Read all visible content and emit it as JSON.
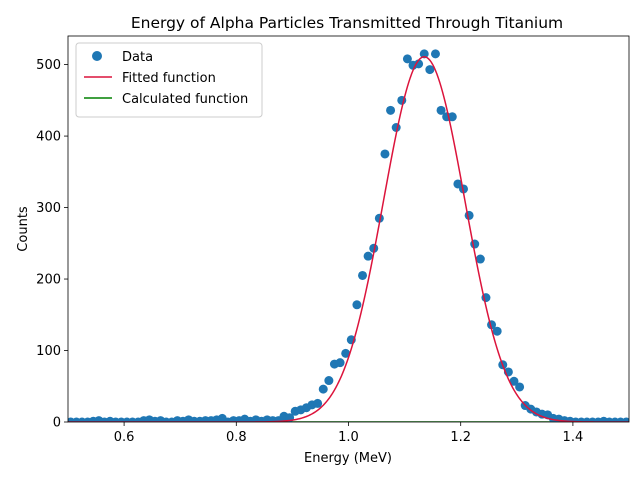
{
  "chart_data": {
    "type": "scatter",
    "title": "Energy of Alpha Particles Transmitted Through Titanium",
    "xlabel": "Energy (MeV)",
    "ylabel": "Counts",
    "xlim": [
      0.5,
      1.5
    ],
    "ylim": [
      0,
      540
    ],
    "x_ticks": [
      0.6,
      0.8,
      1.0,
      1.2,
      1.4
    ],
    "x_tick_labels": [
      "0.6",
      "0.8",
      "1.0",
      "1.2",
      "1.4"
    ],
    "y_ticks": [
      0,
      100,
      200,
      300,
      400,
      500
    ],
    "y_tick_labels": [
      "0",
      "100",
      "200",
      "300",
      "400",
      "500"
    ],
    "grid": false,
    "legend_position": "top-left",
    "series": [
      {
        "name": "Data",
        "kind": "scatter",
        "color": "#1f77b4",
        "x": [
          0.505,
          0.515,
          0.525,
          0.535,
          0.545,
          0.555,
          0.565,
          0.575,
          0.585,
          0.595,
          0.605,
          0.615,
          0.625,
          0.635,
          0.645,
          0.655,
          0.665,
          0.675,
          0.685,
          0.695,
          0.705,
          0.715,
          0.725,
          0.735,
          0.745,
          0.755,
          0.765,
          0.775,
          0.785,
          0.795,
          0.805,
          0.815,
          0.825,
          0.835,
          0.845,
          0.855,
          0.865,
          0.875,
          0.885,
          0.895,
          0.905,
          0.915,
          0.925,
          0.935,
          0.945,
          0.955,
          0.965,
          0.975,
          0.985,
          0.995,
          1.005,
          1.015,
          1.025,
          1.035,
          1.045,
          1.055,
          1.065,
          1.075,
          1.085,
          1.095,
          1.105,
          1.115,
          1.125,
          1.135,
          1.145,
          1.155,
          1.165,
          1.175,
          1.185,
          1.195,
          1.205,
          1.215,
          1.225,
          1.235,
          1.245,
          1.255,
          1.265,
          1.275,
          1.285,
          1.295,
          1.305,
          1.315,
          1.325,
          1.335,
          1.345,
          1.355,
          1.365,
          1.375,
          1.385,
          1.395,
          1.405,
          1.415,
          1.425,
          1.435,
          1.445,
          1.455,
          1.465,
          1.475,
          1.485,
          1.495
        ],
        "y": [
          0,
          0,
          0,
          0,
          1,
          2,
          0,
          1,
          0,
          0,
          0,
          0,
          0,
          2,
          3,
          1,
          2,
          0,
          0,
          2,
          1,
          3,
          1,
          1,
          2,
          2,
          3,
          5,
          0,
          2,
          2,
          4,
          1,
          3,
          1,
          3,
          2,
          2,
          8,
          6,
          15,
          17,
          20,
          24,
          26,
          46,
          58,
          81,
          83,
          96,
          115,
          164,
          205,
          232,
          243,
          285,
          375,
          436,
          412,
          450,
          508,
          499,
          501,
          515,
          493,
          515,
          436,
          427,
          427,
          333,
          326,
          289,
          249,
          228,
          174,
          136,
          127,
          80,
          70,
          57,
          49,
          23,
          18,
          14,
          11,
          10,
          5,
          4,
          2,
          1,
          0,
          0,
          0,
          0,
          0,
          1,
          0,
          0,
          0,
          0
        ]
      },
      {
        "name": "Fitted function",
        "kind": "gaussian-line",
        "color": "#dc143c",
        "amplitude": 511,
        "center": 1.135,
        "sigma": 0.0725
      },
      {
        "name": "Calculated function",
        "kind": "flat-line",
        "color": "#008000",
        "value": 0
      }
    ]
  }
}
